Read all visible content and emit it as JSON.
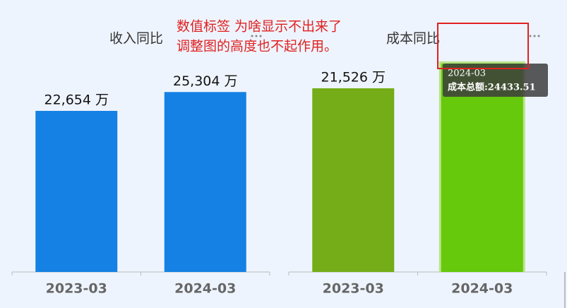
{
  "chart_data": [
    {
      "type": "bar",
      "title": "收入同比",
      "categories": [
        "2023-03",
        "2024-03"
      ],
      "values": [
        22654,
        25304
      ],
      "value_labels": [
        "22,654 万",
        "25,304 万"
      ],
      "colors": [
        "#1581e4",
        "#1581e4"
      ],
      "ylim": [
        0,
        30000
      ]
    },
    {
      "type": "bar",
      "title": "成本同比",
      "categories": [
        "2023-03",
        "2024-03"
      ],
      "values": [
        21526,
        24433.51
      ],
      "value_labels": [
        "21,526 万",
        null
      ],
      "colors": [
        "#74ad17",
        "#66c90b"
      ],
      "ylim": [
        0,
        25000
      ],
      "tooltip": {
        "text": "成本总额:24433.51"
      }
    }
  ],
  "annotation": [
    "数值标签 为啥显示不出来了",
    "调整图的高度也不起作用。"
  ]
}
